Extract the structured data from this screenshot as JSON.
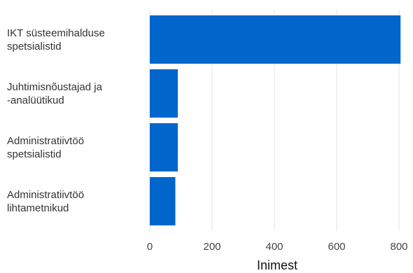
{
  "chart_data": {
    "type": "bar",
    "orientation": "horizontal",
    "categories": [
      [
        "IKT süsteemihalduse",
        "spetsialistid"
      ],
      [
        "Juhtimisnõustajad ja",
        "-analüütikud"
      ],
      [
        "Administratiivtöö",
        "spetsialistid"
      ],
      [
        "Administratiivtöö",
        "lihtametnikud"
      ]
    ],
    "values": [
      805,
      90,
      90,
      82
    ],
    "xlabel": "Inimest",
    "ylabel": "",
    "xlim": [
      0,
      820
    ],
    "xticks": [
      0,
      200,
      400,
      600,
      800
    ],
    "xtick_labels": [
      "0",
      "200",
      "400",
      "600",
      "800"
    ],
    "grid": true,
    "bar_color": "#0066cc"
  }
}
